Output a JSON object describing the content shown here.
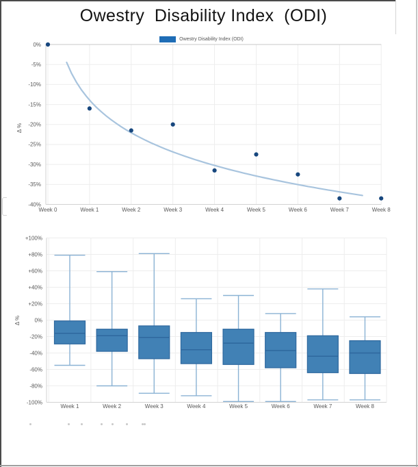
{
  "title": "Owestry  Disability Index  (ODI)",
  "legend": {
    "label": "Owestry Disability Index (ODI)",
    "swatch_color": "#1f6db6"
  },
  "colors": {
    "grid": "#ededed",
    "grid_zero": "#c8c8c8",
    "axis": "#d2d2d2",
    "tick_text": "#595959",
    "border_dark": "#4a4a4a",
    "border_light": "#c6c6c6",
    "border_bottom": "#9e9e9e"
  },
  "chart_data": [
    {
      "type": "scatter",
      "title": "Owestry Disability Index (ODI)",
      "legend_entry": "Owestry Disability Index (ODI)",
      "categories": [
        "Week 0",
        "Week 1",
        "Week 2",
        "Week 3",
        "Week 4",
        "Week 5",
        "Week 6",
        "Week 7",
        "Week 8"
      ],
      "values": [
        0,
        -16,
        -21.5,
        -20,
        -31.5,
        -27.5,
        -32.5,
        -38.5,
        -38.5
      ],
      "xlabel": "",
      "ylabel": "Δ %",
      "ylim": [
        -40,
        0
      ],
      "ytick_values": [
        0,
        -5,
        -10,
        -15,
        -20,
        -25,
        -30,
        -35,
        -40
      ],
      "ytick_labels": [
        "0%",
        "-5%",
        "-10%",
        "-15%",
        "-20%",
        "-25%",
        "-30%",
        "-35%",
        "-40%"
      ],
      "grid": true,
      "legend_position": "top",
      "point_color": "#17477e",
      "trend_color": "#a8c4de",
      "trend": {
        "type": "log",
        "a": -11.8,
        "b": -13.9,
        "from": 0.45,
        "to": 7.55
      }
    },
    {
      "type": "boxplot",
      "title": "",
      "categories": [
        "Week 1",
        "Week 2",
        "Week 3",
        "Week 4",
        "Week 5",
        "Week 6",
        "Week 7",
        "Week 8"
      ],
      "boxes": [
        {
          "low": -55,
          "q1": -29,
          "med": -16,
          "q3": -1,
          "high": 79
        },
        {
          "low": -80,
          "q1": -38,
          "med": -19,
          "q3": -11,
          "high": 59
        },
        {
          "low": -89,
          "q1": -47,
          "med": -21,
          "q3": -7,
          "high": 81
        },
        {
          "low": -92,
          "q1": -53,
          "med": -36,
          "q3": -15,
          "high": 26
        },
        {
          "low": -99,
          "q1": -54,
          "med": -28,
          "q3": -11,
          "high": 30
        },
        {
          "low": -99,
          "q1": -58,
          "med": -37,
          "q3": -15,
          "high": 8
        },
        {
          "low": -97,
          "q1": -64,
          "med": -44,
          "q3": -19,
          "high": 38
        },
        {
          "low": -97,
          "q1": -65,
          "med": -40,
          "q3": -25,
          "high": 4
        }
      ],
      "xlabel": "",
      "ylabel": "Δ %",
      "ylim": [
        -100,
        100
      ],
      "ytick_values": [
        100,
        80,
        60,
        40,
        20,
        0,
        -20,
        -40,
        -60,
        -80,
        -100
      ],
      "ytick_labels": [
        "+100%",
        "+80%",
        "+60%",
        "+40%",
        "+20%",
        "0%",
        "-20%",
        "-40%",
        "-60%",
        "-80%",
        "-100%"
      ],
      "grid": true,
      "box_fill": "#4181b5",
      "box_stroke": "#2e689e",
      "whisker_color": "#8ab2d4"
    }
  ]
}
